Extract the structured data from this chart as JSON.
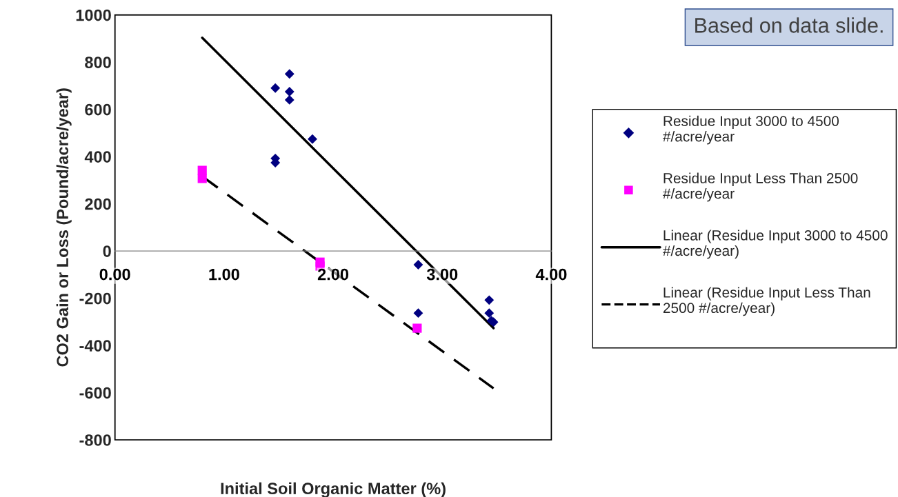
{
  "chart_data": {
    "type": "scatter",
    "xlabel": "Initial Soil Organic Matter (%)",
    "ylabel": "CO2 Gain or Loss (Pound/acre/year)",
    "xlim": [
      0,
      4
    ],
    "xticks": [
      {
        "value": 0,
        "label": "0.00"
      },
      {
        "value": 1,
        "label": "1.00"
      },
      {
        "value": 2,
        "label": "2.00"
      },
      {
        "value": 3,
        "label": "3.00"
      },
      {
        "value": 4,
        "label": "4.00"
      }
    ],
    "ylim": [
      -800,
      1000
    ],
    "yticks": [
      -800,
      -600,
      -400,
      -200,
      0,
      200,
      400,
      600,
      800,
      1000
    ],
    "grid": false,
    "legend": "right",
    "annotations": [
      "Based on data slide."
    ],
    "series": [
      {
        "name": "Residue Input 3000 to 4500 #/acre/year",
        "type": "scatter",
        "marker": "diamond",
        "color": "#000080",
        "x": [
          1.47,
          1.6,
          1.6,
          1.6,
          1.81,
          1.47,
          1.47,
          2.78,
          2.78,
          3.43,
          3.43,
          3.45,
          3.47
        ],
        "values": [
          690,
          750,
          675,
          640,
          474,
          392,
          374,
          -58,
          -263,
          -208,
          -263,
          -295,
          -301
        ]
      },
      {
        "name": "Residue Input Less Than 2500 #/acre/year",
        "type": "scatter",
        "marker": "square",
        "color": "#ff00ff",
        "x": [
          0.8,
          0.8,
          1.88,
          1.88,
          2.77
        ],
        "values": [
          342,
          307,
          -47,
          -64,
          -327
        ]
      },
      {
        "name": "Linear (Residue Input 3000 to 4500 #/acre/year)",
        "type": "line",
        "line_style": "solid",
        "color": "#000000",
        "x": [
          0.8,
          3.47
        ],
        "values": [
          903,
          -327
        ]
      },
      {
        "name": "Linear (Residue Input Less Than 2500 #/acre/year)",
        "type": "line",
        "line_style": "dashed",
        "color": "#000000",
        "x": [
          0.8,
          3.47
        ],
        "values": [
          316,
          -582
        ]
      }
    ]
  }
}
